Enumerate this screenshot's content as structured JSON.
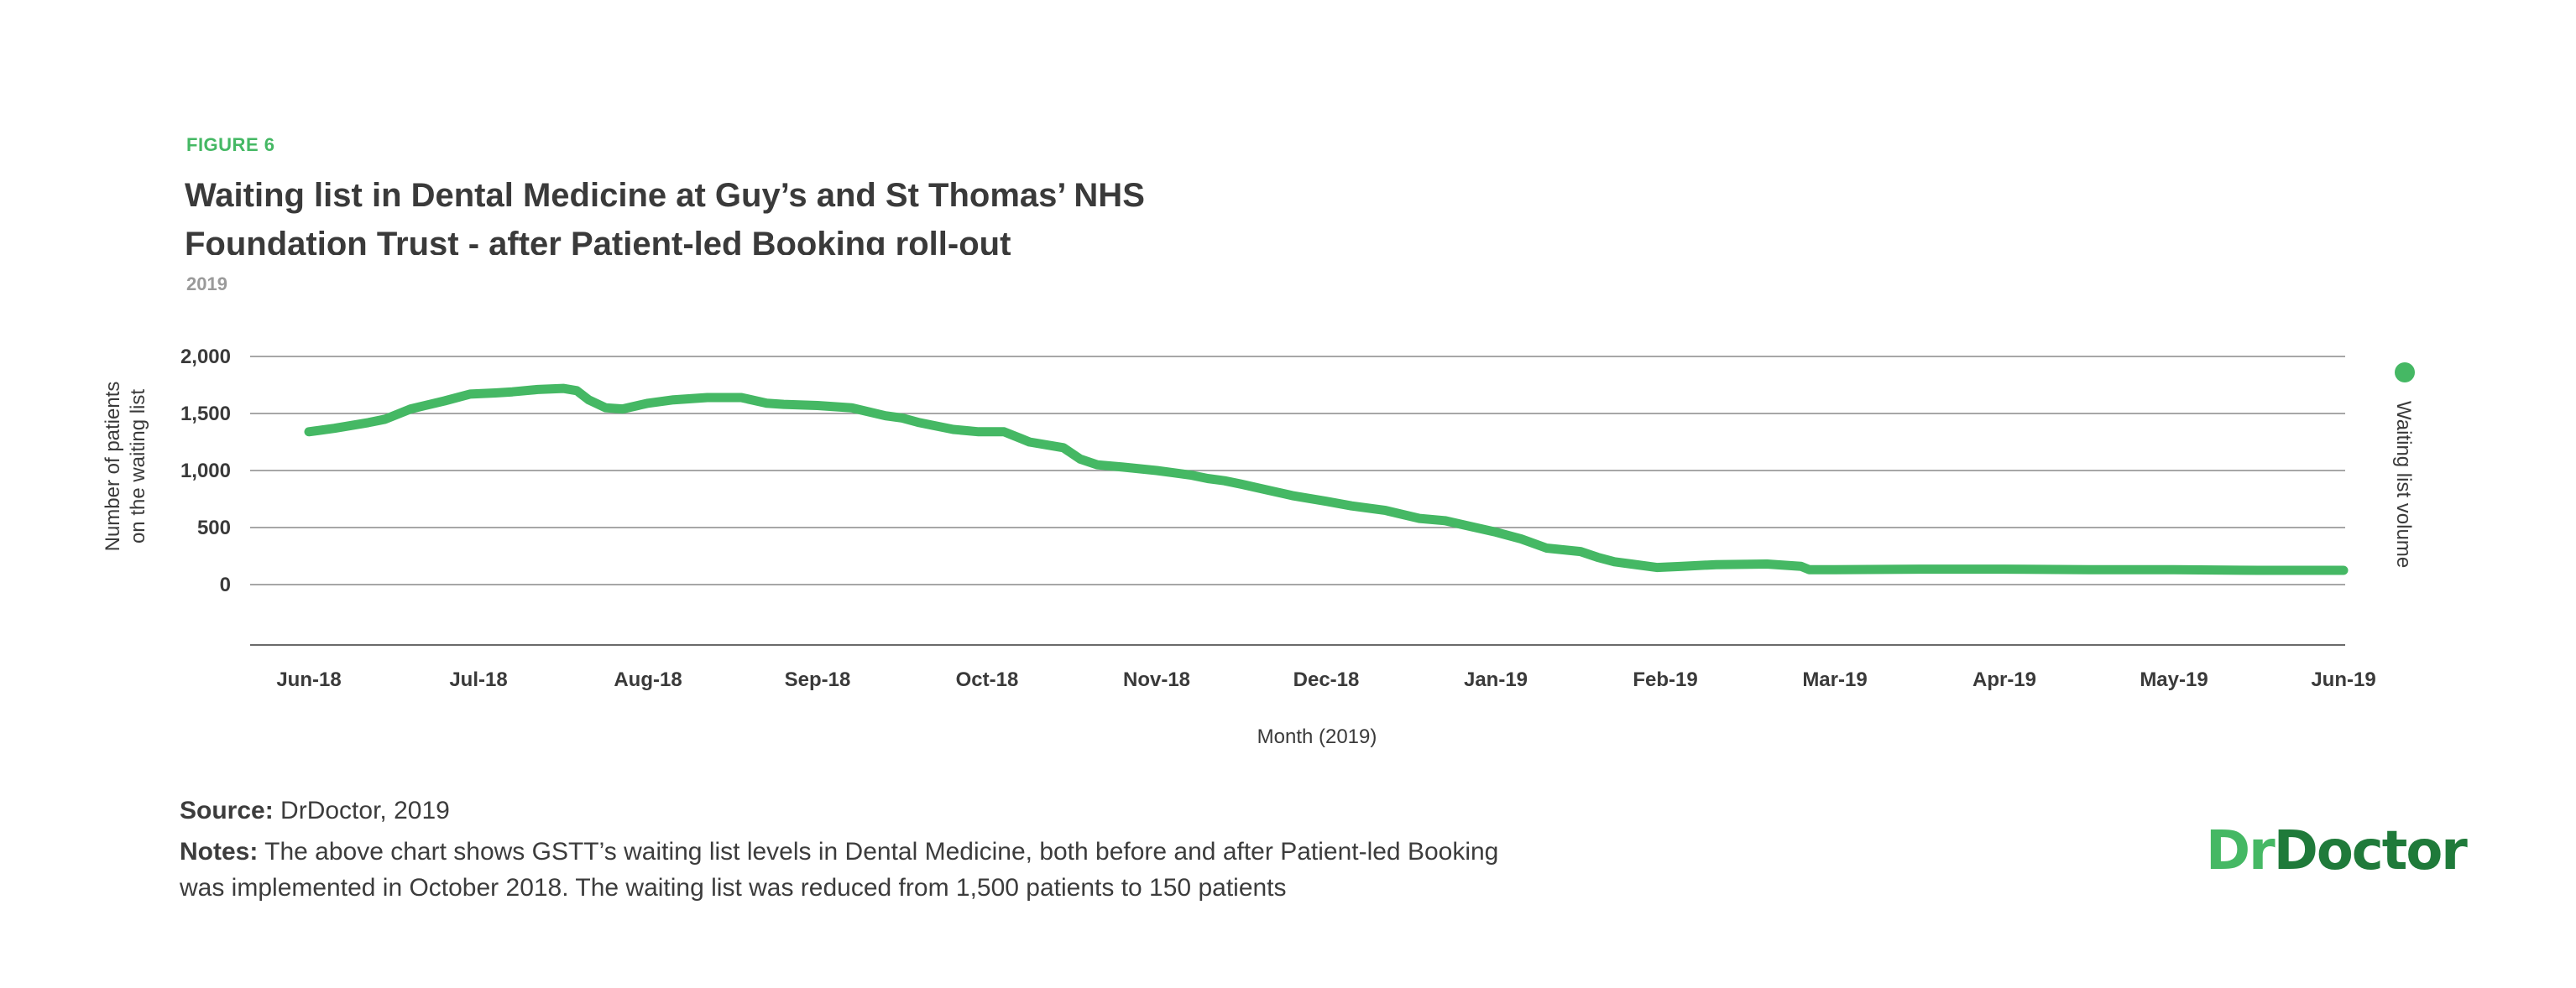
{
  "figure_label": "FIGURE 6",
  "subtitle": "2019",
  "source": {
    "label": "Source:",
    "text": "DrDoctor, 2019"
  },
  "notes": {
    "label": "Notes:",
    "text": "The above chart shows GSTT’s waiting list levels in Dental Medicine, both before and after Patient-led Booking was implemented in October 2018. The waiting list was reduced from 1,500 patients to 150 patients"
  },
  "logo": {
    "part1": "Dr",
    "part2": "Doctor"
  },
  "colors": {
    "line": "#45b864",
    "grid": "#8a8a8a",
    "text": "#3c3c3c"
  },
  "chart_data": {
    "type": "line",
    "title": "Waiting list in Dental Medicine at Guy’s and St Thomas’ NHS Foundation Trust - after Patient-led Booking roll-out",
    "xlabel": "Month (2019)",
    "ylabel": "Number of patients on the waiting list",
    "ylim": [
      -500,
      2000
    ],
    "yticks": [
      0,
      500,
      1000,
      1500,
      2000
    ],
    "ytick_labels": [
      "0",
      "500",
      "1,000",
      "1,500",
      "2,000"
    ],
    "x_categories": [
      "Jun-18",
      "Jul-18",
      "Aug-18",
      "Sep-18",
      "Oct-18",
      "Nov-18",
      "Dec-18",
      "Jan-19",
      "Feb-19",
      "Mar-19",
      "Apr-19",
      "May-19",
      "Jun-19"
    ],
    "legend": {
      "position": "right",
      "label": "Waiting list volume"
    },
    "grid": true,
    "series": [
      {
        "name": "Waiting list volume",
        "x": [
          0.0,
          0.15,
          0.35,
          0.45,
          0.6,
          0.8,
          0.95,
          1.1,
          1.2,
          1.35,
          1.5,
          1.58,
          1.65,
          1.75,
          1.85,
          2.0,
          2.15,
          2.35,
          2.55,
          2.7,
          2.8,
          3.0,
          3.2,
          3.4,
          3.5,
          3.6,
          3.8,
          3.95,
          4.1,
          4.2,
          4.25,
          4.45,
          4.55,
          4.65,
          4.8,
          5.0,
          5.1,
          5.2,
          5.3,
          5.4,
          5.5,
          5.65,
          5.8,
          6.0,
          6.15,
          6.35,
          6.55,
          6.7,
          6.85,
          7.0,
          7.15,
          7.3,
          7.5,
          7.6,
          7.7,
          7.8,
          7.95,
          8.1,
          8.3,
          8.6,
          8.8,
          8.85,
          9.0,
          9.5,
          10.0,
          10.5,
          11.0,
          11.5,
          12.0
        ],
        "y": [
          1340,
          1370,
          1420,
          1450,
          1540,
          1610,
          1670,
          1680,
          1690,
          1710,
          1720,
          1700,
          1620,
          1550,
          1540,
          1590,
          1620,
          1640,
          1640,
          1590,
          1580,
          1570,
          1550,
          1480,
          1460,
          1420,
          1360,
          1340,
          1340,
          1280,
          1250,
          1200,
          1100,
          1050,
          1030,
          1000,
          980,
          960,
          930,
          910,
          880,
          830,
          780,
          730,
          690,
          650,
          580,
          560,
          510,
          460,
          400,
          320,
          290,
          240,
          200,
          180,
          150,
          160,
          175,
          180,
          160,
          130,
          130,
          135,
          135,
          130,
          130,
          125,
          125
        ]
      }
    ]
  }
}
